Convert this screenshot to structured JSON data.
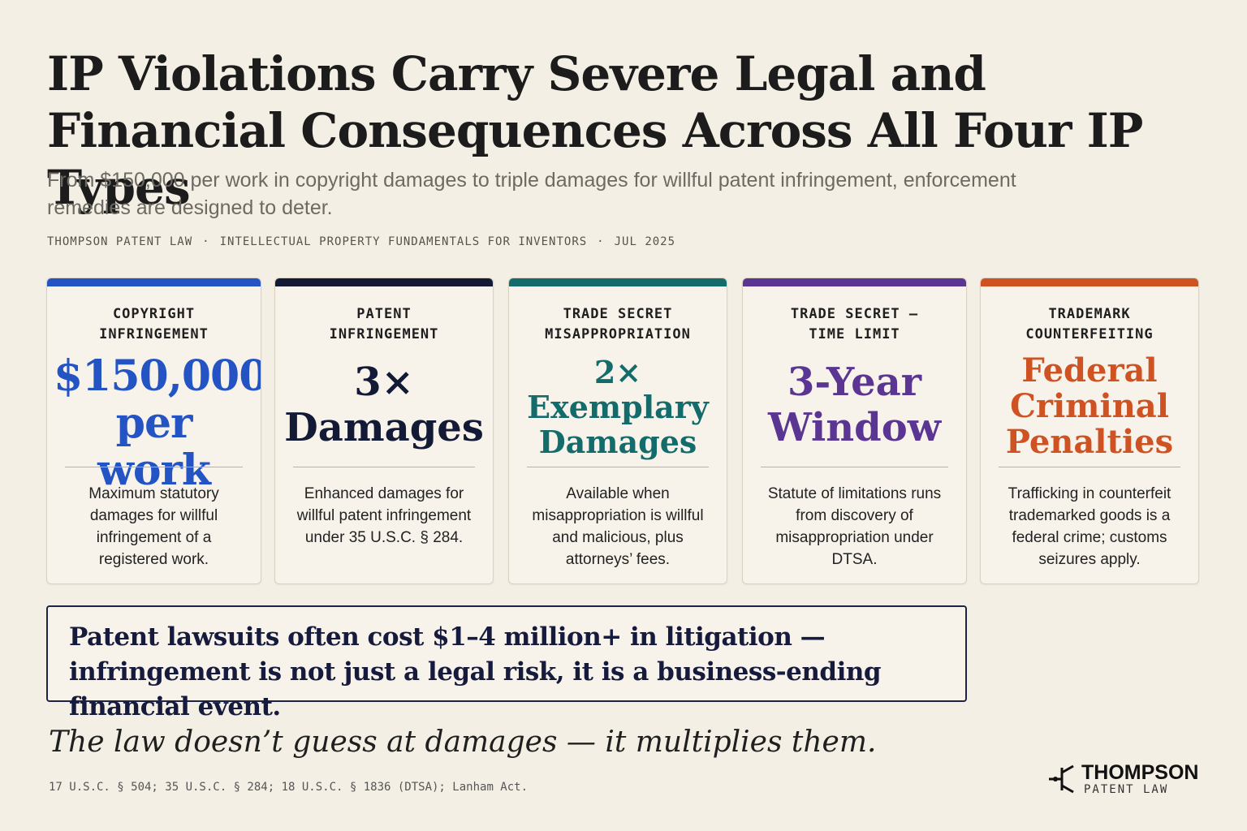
{
  "header": {
    "title": "IP Violations Carry Severe Legal and Financial Consequences Across All Four IP Types",
    "subtitle": "From $150,000 per work in copyright damages to triple damages for willful patent infringement, enforcement remedies are designed to deter.",
    "meta": {
      "firm": "THOMPSON PATENT LAW",
      "series": "INTELLECTUAL PROPERTY FUNDAMENTALS FOR INVENTORS",
      "date": "JUL 2025"
    }
  },
  "cards": [
    {
      "label": "COPYRIGHT\nINFRINGEMENT",
      "headline": "$150,000\nper work",
      "description": "Maximum statutory damages for willful infringement of a registered work.",
      "accent_color": "#2453c4"
    },
    {
      "label": "PATENT\nINFRINGEMENT",
      "headline": "3×\nDamages",
      "description": "Enhanced damages for willful patent infringement under 35 U.S.C. § 284.",
      "accent_color": "#121a36"
    },
    {
      "label": "TRADE SECRET\nMISAPPROPRIATION",
      "headline": "2×\nExemplary\nDamages",
      "description": "Available when misappropriation is willful and malicious, plus attorneys’ fees.",
      "accent_color": "#136b6b"
    },
    {
      "label": "TRADE SECRET —\nTIME LIMIT",
      "headline": "3-Year\nWindow",
      "description": "Statute of limitations runs from discovery of misappropriation under DTSA.",
      "accent_color": "#5a3692"
    },
    {
      "label": "TRADEMARK\nCOUNTERFEITING",
      "headline": "Federal\nCriminal\nPenalties",
      "description": "Trafficking in counterfeit trademarked goods is a federal crime; customs seizures apply.",
      "accent_color": "#cf5322"
    }
  ],
  "callout": {
    "text": "Patent lawsuits often cost $1–4 million+ in litigation — infringement is not just a legal risk, it is a business-ending financial event."
  },
  "tagline": "The law doesn’t guess at damages — it multiplies them.",
  "sources": "17 U.S.C. § 504; 35 U.S.C. § 284; 18 U.S.C. § 1836 (DTSA); Lanham Act.",
  "logo": {
    "name": "THOMPSON",
    "subtitle": "PATENT LAW",
    "icon": "circuit-node-icon"
  }
}
